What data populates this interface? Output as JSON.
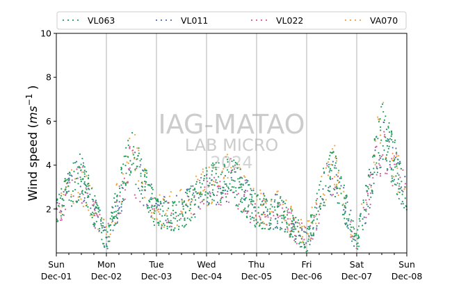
{
  "chart_data": {
    "type": "scatter",
    "ylabel_main": "Wind speed (",
    "ylabel_unit": "ms",
    "ylabel_exp": "−1",
    "ylabel_close": ")",
    "ylim": [
      0,
      10
    ],
    "yticks": [
      2,
      4,
      6,
      8,
      10
    ],
    "xlim": [
      "2024-12-01",
      "2024-12-08"
    ],
    "xticks": [
      {
        "day": "Sun",
        "date": "Dec-01"
      },
      {
        "day": "Mon",
        "date": "Dec-02"
      },
      {
        "day": "Tue",
        "date": "Dec-03"
      },
      {
        "day": "Wed",
        "date": "Dec-04"
      },
      {
        "day": "Thu",
        "date": "Dec-05"
      },
      {
        "day": "Fri",
        "date": "Dec-06"
      },
      {
        "day": "Sat",
        "date": "Dec-07"
      },
      {
        "day": "Sun",
        "date": "Dec-08"
      }
    ],
    "grid": "vertical day lines",
    "legend_position": "top, above plot, 4 columns",
    "watermark": {
      "line1": "IAG-MATAO",
      "line2": "LAB MICRO",
      "line3": "2024"
    },
    "series": [
      {
        "name": "VL063",
        "color": "#1f9e5b",
        "y_pattern": [
          2.1,
          3.6,
          0.5,
          4.6,
          1.7,
          1.8,
          3.0,
          3.4,
          1.9,
          1.8,
          0.5,
          4.1,
          0.4,
          5.6,
          2.6
        ]
      },
      {
        "name": "VL011",
        "color": "#4e6ea8",
        "y_pattern": [
          2.2,
          3.5,
          0.6,
          4.2,
          1.8,
          2.0,
          2.9,
          3.5,
          2.0,
          1.9,
          0.6,
          3.8,
          0.5,
          5.2,
          2.7
        ]
      },
      {
        "name": "VL022",
        "color": "#d45a9a",
        "y_pattern": [
          2.0,
          3.3,
          0.7,
          4.0,
          1.6,
          1.9,
          2.8,
          3.3,
          1.8,
          1.7,
          0.6,
          3.6,
          0.5,
          5.0,
          2.5
        ]
      },
      {
        "name": "VA070",
        "color": "#f0a23a",
        "y_pattern": [
          2.3,
          3.2,
          0.8,
          4.8,
          1.9,
          2.1,
          3.1,
          3.6,
          2.1,
          2.0,
          0.7,
          4.2,
          0.7,
          5.8,
          2.8
        ]
      }
    ]
  }
}
